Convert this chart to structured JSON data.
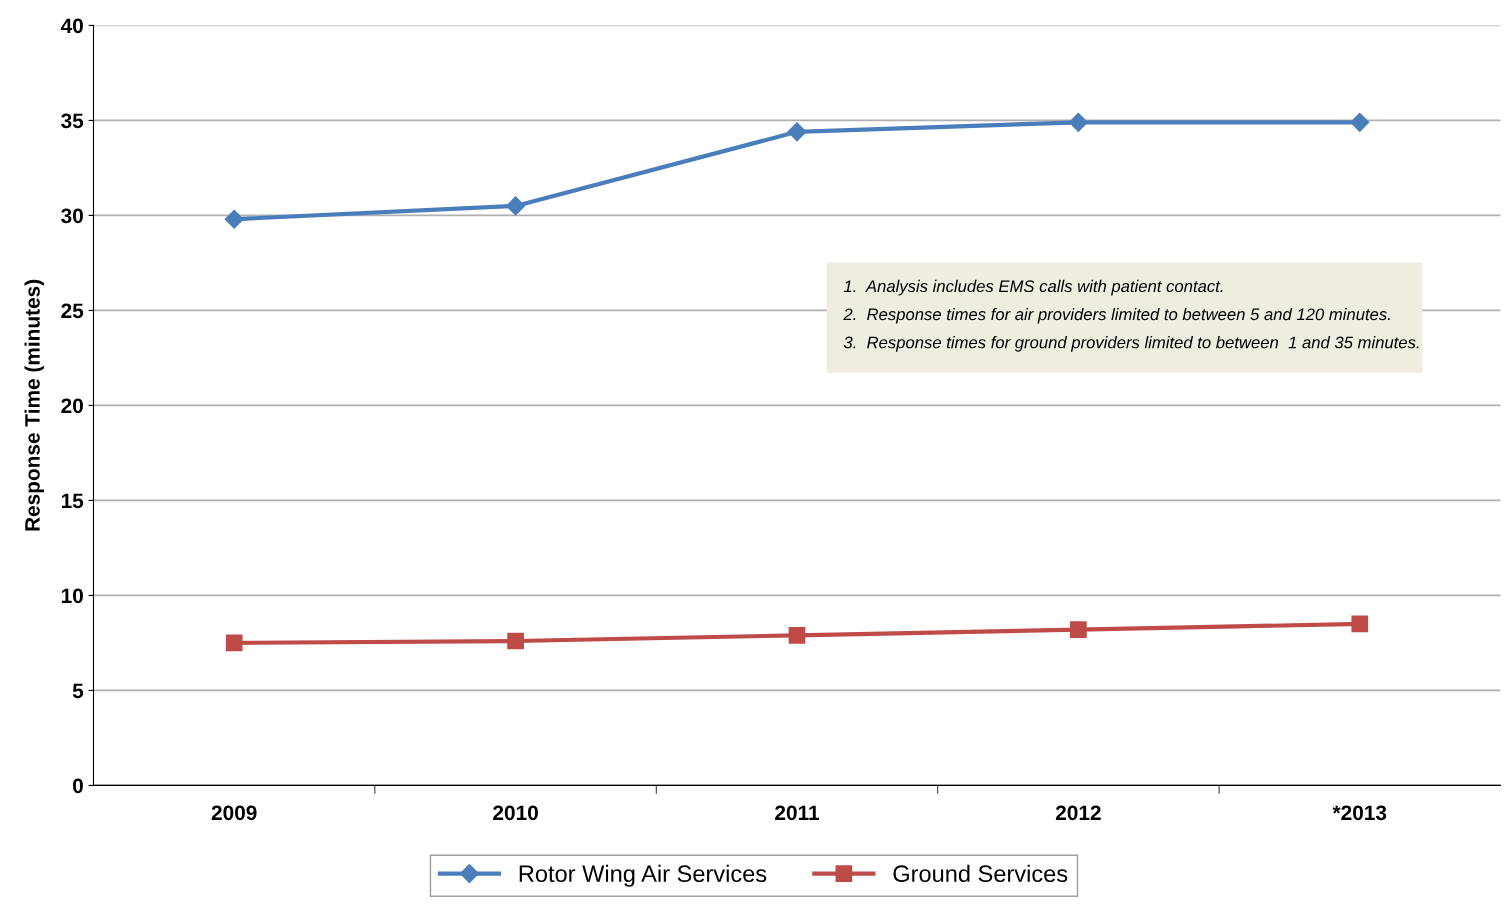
{
  "chart_data": {
    "type": "line",
    "ylabel": "Response Time (minutes)",
    "categories": [
      "2009",
      "2010",
      "2011",
      "2012",
      "*2013"
    ],
    "series": [
      {
        "name": "Rotor Wing Air Services",
        "color": "#4a7ebb",
        "marker": "diamond",
        "values": [
          29.8,
          30.5,
          34.4,
          34.9,
          34.9
        ]
      },
      {
        "name": "Ground Services",
        "color": "#be4b48",
        "marker": "square",
        "values": [
          7.5,
          7.6,
          7.9,
          8.2,
          8.5
        ]
      }
    ],
    "ylim": [
      0,
      40
    ],
    "yticks": [
      0,
      5,
      10,
      15,
      20,
      25,
      30,
      35,
      40
    ],
    "grid": "y",
    "legend": "bottom",
    "annotations": [
      "1.  Analysis includes EMS calls with patient contact.",
      "2.  Response times for air providers limited to between 5 and 120 minutes.",
      "3.  Response times for ground providers limited to between  1 and 35 minutes."
    ]
  }
}
